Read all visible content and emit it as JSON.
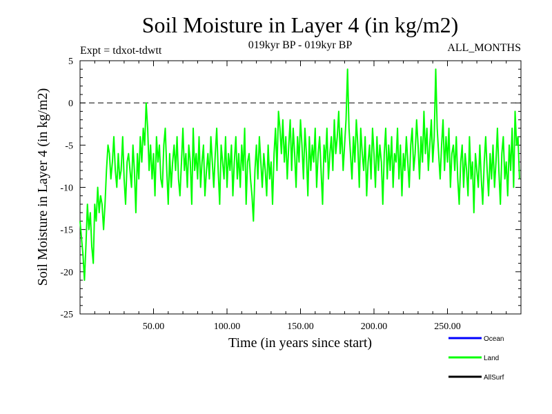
{
  "header": {
    "title": "Soil Moisture in Layer 4 (in kg/m2)",
    "experiment": "Expt = tdxot-tdwtt",
    "period": "019kyr BP - 019kyr BP",
    "months": "ALL_MONTHS"
  },
  "chart_data": {
    "type": "line",
    "xlabel": "Time (in years since start)",
    "ylabel": "Soil Moisture in Layer 4 (in kg/m2)",
    "xlim": [
      0,
      300
    ],
    "ylim": [
      -25,
      5
    ],
    "x_ticks": [
      50,
      100,
      150,
      200,
      250
    ],
    "x_tick_labels": [
      "50.00",
      "100.00",
      "150.00",
      "200.00",
      "250.00"
    ],
    "y_ticks": [
      5,
      0,
      -5,
      -10,
      -15,
      -20,
      -25
    ],
    "y_tick_labels": [
      "5",
      "0",
      "-5",
      "-10",
      "-15",
      "-20",
      "-25"
    ],
    "reference_line": 0,
    "grid": false,
    "legend_position": "bottom-right",
    "legend": [
      {
        "name": "Ocean",
        "color": "#0000ff"
      },
      {
        "name": "Land",
        "color": "#00ff00"
      },
      {
        "name": "AllSurf",
        "color": "#000000"
      }
    ],
    "series": [
      {
        "name": "Land",
        "color": "#00ff00",
        "x_start": 0,
        "x_step": 1,
        "values": [
          -14,
          -16,
          -18,
          -21,
          -17,
          -12,
          -15,
          -13,
          -17,
          -19,
          -12,
          -14,
          -10,
          -13,
          -11,
          -12,
          -15,
          -12,
          -8,
          -5,
          -6,
          -9,
          -7,
          -4,
          -8,
          -10,
          -6,
          -9,
          -8,
          -4,
          -9,
          -12,
          -7,
          -6,
          -8,
          -10,
          -5,
          -8,
          -13,
          -6,
          -9,
          -4,
          -7,
          -3,
          -5,
          0,
          -3,
          -8,
          -5,
          -9,
          -6,
          -11,
          -4,
          -7,
          -5,
          -9,
          -10,
          -5,
          -3,
          -8,
          -12,
          -6,
          -10,
          -7,
          -5,
          -8,
          -4,
          -9,
          -11,
          -7,
          -3,
          -8,
          -6,
          -10,
          -5,
          -7,
          -12,
          -3,
          -8,
          -6,
          -9,
          -4,
          -10,
          -7,
          -5,
          -11,
          -8,
          -6,
          -9,
          -4,
          -7,
          -10,
          -6,
          -3,
          -8,
          -12,
          -5,
          -7,
          -9,
          -4,
          -10,
          -6,
          -8,
          -5,
          -11,
          -7,
          -4,
          -9,
          -6,
          -10,
          -5,
          -8,
          -3,
          -12,
          -7,
          -6,
          -9,
          -11,
          -14,
          -8,
          -5,
          -9,
          -4,
          -7,
          -10,
          -6,
          -8,
          -11,
          -5,
          -9,
          -7,
          -12,
          -6,
          -3,
          -8,
          -1,
          -3,
          -6,
          -2,
          -7,
          -4,
          -9,
          -5,
          -2,
          -8,
          -3,
          -6,
          -10,
          -4,
          -7,
          -2,
          -5,
          -9,
          -3,
          -6,
          -11,
          -4,
          -8,
          -5,
          -7,
          -3,
          -10,
          -6,
          -4,
          -8,
          -12,
          -5,
          -7,
          -3,
          -9,
          -6,
          -4,
          -8,
          -2,
          -6,
          -4,
          -1,
          -6,
          -3,
          -8,
          -5,
          -2,
          4,
          -3,
          -6,
          -9,
          -4,
          -7,
          -2,
          -5,
          -10,
          -3,
          -6,
          -8,
          -4,
          -11,
          -7,
          -5,
          -9,
          -3,
          -6,
          -10,
          -4,
          -8,
          -5,
          -7,
          -12,
          -6,
          -3,
          -9,
          -5,
          -8,
          -4,
          -10,
          -6,
          -7,
          -3,
          -9,
          -5,
          -11,
          -6,
          -8,
          -4,
          -7,
          -10,
          -5,
          -3,
          -8,
          -6,
          -2,
          -5,
          -9,
          -4,
          -7,
          -1,
          -6,
          -3,
          -8,
          -5,
          -2,
          -7,
          -4,
          4,
          -3,
          -6,
          -9,
          -5,
          -2,
          -8,
          -4,
          -7,
          -3,
          -10,
          -6,
          -5,
          -8,
          -4,
          -9,
          -12,
          -7,
          -5,
          -10,
          -6,
          -8,
          -11,
          -4,
          -9,
          -7,
          -13,
          -6,
          -8,
          -10,
          -5,
          -9,
          -12,
          -7,
          -4,
          -8,
          -11,
          -6,
          -9,
          -5,
          -10,
          -7,
          -3,
          -8,
          -12,
          -6,
          -4,
          -9,
          -7,
          -11,
          -5,
          -8,
          -3,
          -10,
          -1,
          -5,
          -4,
          -9
        ]
      }
    ]
  }
}
